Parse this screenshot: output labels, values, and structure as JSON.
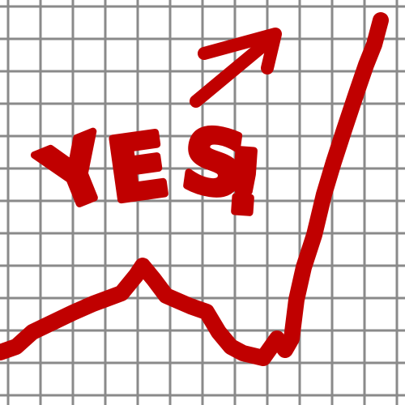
{
  "text": "YES!"
}
